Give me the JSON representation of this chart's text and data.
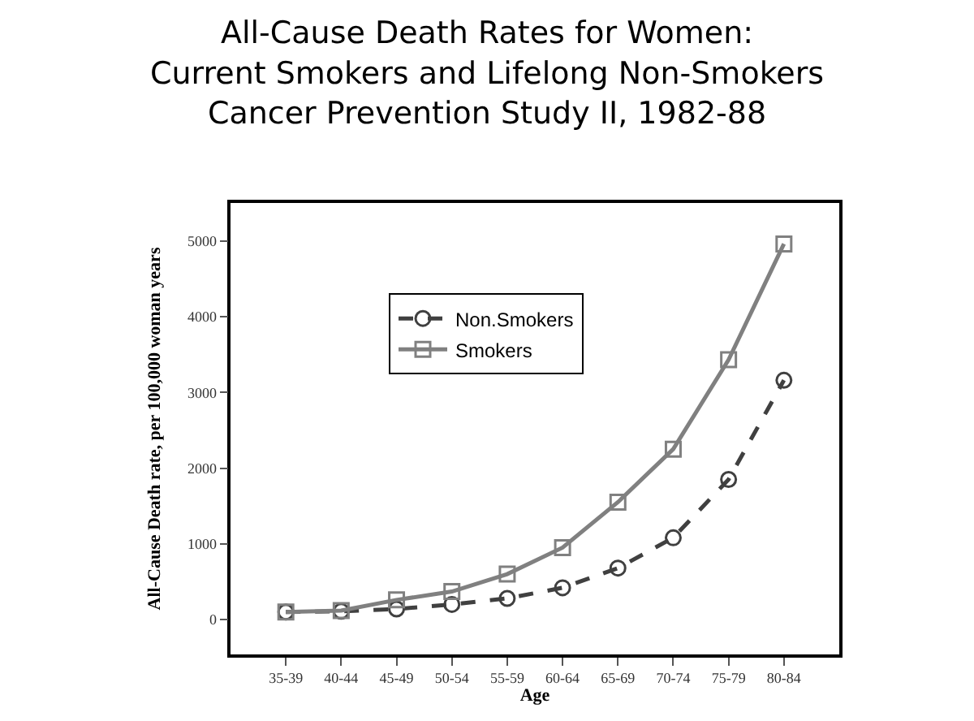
{
  "chart_data": {
    "type": "line",
    "title": "All-Cause Death Rates for Women:\nCurrent Smokers and Lifelong Non-Smokers\nCancer Prevention Study II, 1982-88",
    "xlabel": "Age",
    "ylabel": "All-Cause Death rate, per 100,000 woman years",
    "categories": [
      "35-39",
      "40-44",
      "45-49",
      "50-54",
      "55-59",
      "60-64",
      "65-69",
      "70-74",
      "75-79",
      "80-84"
    ],
    "series": [
      {
        "name": "Non.Smokers",
        "color": "#404040",
        "marker": "circle",
        "line_style": "dashed",
        "values": [
          100,
          110,
          140,
          200,
          280,
          420,
          680,
          1080,
          1850,
          3160
        ]
      },
      {
        "name": "Smokers",
        "color": "#808080",
        "marker": "square",
        "line_style": "solid",
        "values": [
          100,
          120,
          260,
          370,
          600,
          950,
          1550,
          2250,
          3430,
          4960
        ]
      }
    ],
    "ylim": [
      -460,
      5500
    ],
    "yticks": [
      0,
      1000,
      2000,
      3000,
      4000,
      5000
    ],
    "legend": "top left"
  }
}
